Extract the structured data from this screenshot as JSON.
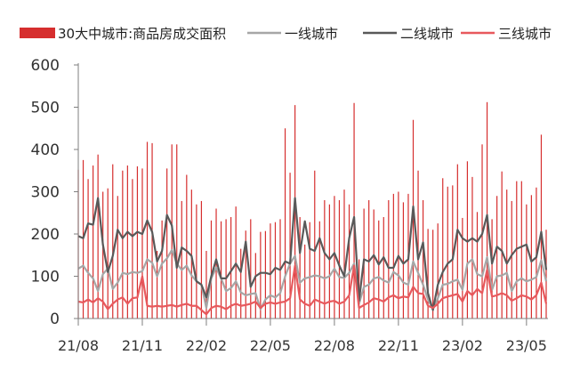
{
  "chart_data": {
    "type": "bar",
    "title": "",
    "xlabel": "",
    "ylabel": "",
    "ylim": [
      0,
      600
    ],
    "yticks": [
      0,
      100,
      200,
      300,
      400,
      500,
      600
    ],
    "x_tick_labels": [
      "21/08",
      "21/11",
      "22/02",
      "22/05",
      "22/08",
      "22/11",
      "23/02",
      "23/05"
    ],
    "x_tick_weeks": [
      0,
      13,
      26,
      39,
      52,
      65,
      78,
      91
    ],
    "grid": false,
    "legend_position": "top",
    "series": [
      {
        "name": "30大中城市:商品房成交面积",
        "kind": "bar",
        "color": "#d62e2e",
        "values": [
          352,
          375,
          330,
          362,
          388,
          300,
          308,
          365,
          290,
          350,
          362,
          330,
          360,
          355,
          418,
          415,
          160,
          232,
          355,
          412,
          412,
          278,
          340,
          305,
          270,
          278,
          160,
          232,
          260,
          230,
          235,
          240,
          265,
          165,
          208,
          235,
          155,
          205,
          207,
          225,
          228,
          235,
          450,
          345,
          505,
          240,
          175,
          228,
          350,
          230,
          280,
          270,
          290,
          280,
          305,
          270,
          510,
          140,
          260,
          280,
          258,
          232,
          240,
          280,
          295,
          300,
          275,
          295,
          470,
          350,
          280,
          212,
          210,
          225,
          332,
          312,
          315,
          365,
          238,
          372,
          335,
          252,
          412,
          512,
          235,
          290,
          348,
          305,
          278,
          325,
          325,
          270,
          292,
          310,
          435,
          210
        ]
      },
      {
        "name": "一线城市",
        "kind": "line",
        "color": "#a6a6a6",
        "values": [
          118,
          125,
          108,
          95,
          65,
          105,
          118,
          70,
          85,
          108,
          105,
          110,
          108,
          112,
          140,
          132,
          100,
          130,
          142,
          162,
          130,
          115,
          125,
          102,
          88,
          80,
          25,
          95,
          120,
          95,
          65,
          72,
          88,
          62,
          55,
          58,
          60,
          22,
          45,
          55,
          50,
          60,
          100,
          130,
          148,
          85,
          95,
          98,
          102,
          100,
          95,
          100,
          118,
          98,
          96,
          108,
          130,
          35,
          75,
          80,
          95,
          98,
          90,
          85,
          110,
          102,
          85,
          80,
          135,
          108,
          80,
          45,
          22,
          48,
          80,
          82,
          88,
          92,
          68,
          130,
          140,
          105,
          100,
          145,
          68,
          100,
          102,
          108,
          65,
          88,
          95,
          88,
          92,
          98,
          138,
          88
        ]
      },
      {
        "name": "二线城市",
        "kind": "line",
        "color": "#595959",
        "values": [
          195,
          190,
          225,
          222,
          285,
          175,
          110,
          148,
          210,
          190,
          205,
          195,
          205,
          200,
          232,
          205,
          135,
          160,
          245,
          220,
          120,
          168,
          160,
          148,
          88,
          80,
          50,
          100,
          140,
          95,
          95,
          112,
          130,
          110,
          182,
          75,
          100,
          108,
          108,
          105,
          120,
          115,
          135,
          130,
          285,
          155,
          230,
          165,
          160,
          190,
          155,
          140,
          155,
          125,
          100,
          190,
          240,
          42,
          140,
          135,
          150,
          128,
          145,
          120,
          120,
          148,
          130,
          140,
          265,
          140,
          180,
          60,
          20,
          80,
          110,
          130,
          140,
          210,
          190,
          182,
          190,
          182,
          200,
          245,
          130,
          170,
          160,
          130,
          150,
          165,
          170,
          175,
          135,
          145,
          205,
          115
        ]
      },
      {
        "name": "三线城市",
        "kind": "line",
        "color": "#e8595d",
        "values": [
          40,
          38,
          45,
          38,
          48,
          40,
          22,
          35,
          45,
          50,
          35,
          48,
          50,
          100,
          30,
          28,
          30,
          28,
          30,
          32,
          28,
          32,
          35,
          30,
          30,
          20,
          10,
          25,
          30,
          28,
          22,
          30,
          35,
          30,
          32,
          35,
          40,
          25,
          35,
          38,
          35,
          38,
          40,
          48,
          125,
          45,
          35,
          30,
          45,
          40,
          35,
          40,
          42,
          35,
          40,
          55,
          125,
          25,
          32,
          38,
          48,
          45,
          40,
          50,
          55,
          48,
          52,
          50,
          75,
          60,
          58,
          30,
          25,
          35,
          48,
          52,
          55,
          58,
          40,
          65,
          55,
          70,
          60,
          115,
          52,
          55,
          60,
          55,
          42,
          48,
          55,
          52,
          45,
          55,
          85,
          35
        ]
      }
    ]
  }
}
